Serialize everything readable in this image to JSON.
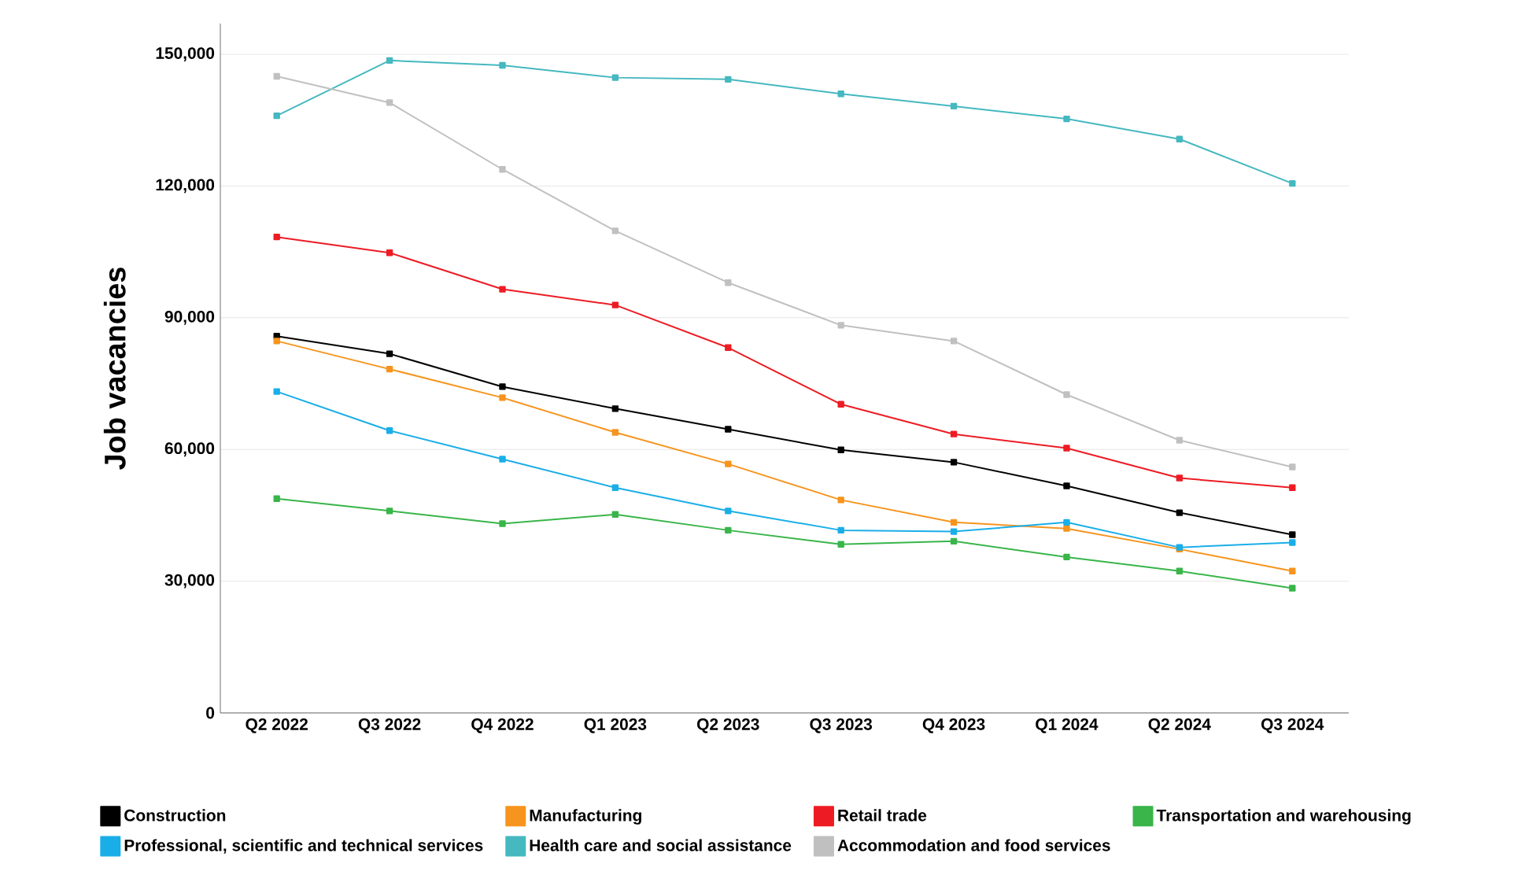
{
  "chart_data": {
    "type": "line",
    "ylabel": "Job vacancies",
    "categories": [
      "Q2 2022",
      "Q3 2022",
      "Q4 2022",
      "Q1 2023",
      "Q2 2023",
      "Q3 2023",
      "Q4 2023",
      "Q1 2024",
      "Q2 2024",
      "Q3 2024"
    ],
    "series": [
      {
        "name": "Construction",
        "color": "#000000",
        "values": [
          85800,
          81800,
          74300,
          69300,
          64600,
          59900,
          57100,
          51700,
          45600,
          40600
        ]
      },
      {
        "name": "Manufacturing",
        "color": "#f7941d",
        "values": [
          84700,
          78300,
          71800,
          63900,
          56700,
          48500,
          43400,
          42000,
          37300,
          32300
        ]
      },
      {
        "name": "Retail trade",
        "color": "#ed1c24",
        "values": [
          108400,
          104800,
          96500,
          92900,
          83200,
          70300,
          63500,
          60300,
          53500,
          51300
        ]
      },
      {
        "name": "Transportation and warehousing",
        "color": "#39b54a",
        "values": [
          48800,
          46000,
          43100,
          45200,
          41600,
          38400,
          39100,
          35500,
          32300,
          28400
        ]
      },
      {
        "name": "Professional, scientific and technical services",
        "color": "#1aaee8",
        "values": [
          73200,
          64300,
          57800,
          51300,
          46000,
          41600,
          41300,
          43400,
          37700,
          38800
        ]
      },
      {
        "name": "Health care and social assistance",
        "color": "#45b8c0",
        "values": [
          136000,
          148600,
          147500,
          144700,
          144300,
          141000,
          138200,
          135300,
          130700,
          120600
        ]
      },
      {
        "name": "Accommodation and food services",
        "color": "#c0c0c0",
        "values": [
          145000,
          139000,
          123800,
          109800,
          98000,
          88300,
          84700,
          72500,
          62100,
          56000
        ]
      }
    ],
    "ylim": [
      0,
      157000
    ],
    "yticks": [
      0,
      {
        "value": 30000,
        "label": "30,000"
      },
      {
        "value": 60000,
        "label": "60,000"
      },
      {
        "value": 90000,
        "label": "90,000"
      },
      {
        "value": 120000,
        "label": "120,000"
      },
      {
        "value": 150000,
        "label": "150,000"
      }
    ],
    "grid": "y",
    "legend": "bottom",
    "marker": "square",
    "line_style": "solid"
  }
}
